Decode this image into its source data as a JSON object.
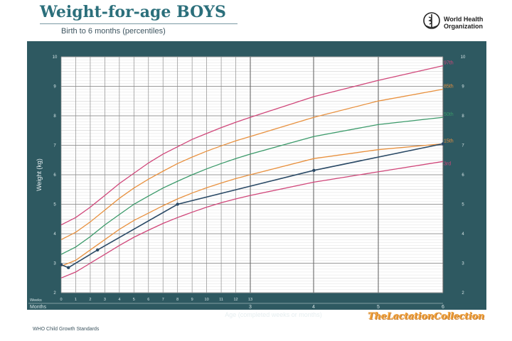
{
  "header": {
    "title": "Weight-for-age BOYS",
    "subtitle": "Birth to 6 months (percentiles)",
    "org_line1": "World Health",
    "org_line2": "Organization"
  },
  "footer": {
    "source": "WHO Child Growth Standards",
    "brand": "TheLactationCollection"
  },
  "colors": {
    "panel": "#2e5961",
    "p97": "#d0477a",
    "p85": "#e8913f",
    "p50": "#3b9a6a",
    "p15": "#e8913f",
    "p3": "#d0477a",
    "child": "#2b4a66"
  },
  "chart_data": {
    "type": "line",
    "xlabel": "Age (completed weeks or months)",
    "ylabel": "Weight (kg)",
    "y_range": [
      2,
      10
    ],
    "y_ticks": [
      2,
      3,
      4,
      5,
      6,
      7,
      8,
      9,
      10
    ],
    "week_axis_label": "Weeks",
    "month_axis_label": "Months",
    "week_ticks": [
      "0",
      "1",
      "2",
      "3",
      "4",
      "5",
      "6",
      "7",
      "8",
      "9",
      "10",
      "11",
      "12",
      "13"
    ],
    "month_ticks": [
      "3",
      "4",
      "5",
      "6"
    ],
    "x_unit": "weeks",
    "x_range": [
      0,
      26
    ],
    "grid": true,
    "percentile_series": [
      {
        "name": "97th",
        "x": [
          0,
          1,
          2,
          3,
          4,
          5,
          6,
          7,
          8,
          9,
          10,
          11,
          12,
          13,
          17.4,
          21.7,
          26.1
        ],
        "values": [
          4.3,
          4.55,
          4.9,
          5.3,
          5.7,
          6.05,
          6.4,
          6.7,
          6.95,
          7.2,
          7.4,
          7.6,
          7.78,
          7.95,
          8.65,
          9.2,
          9.7
        ]
      },
      {
        "name": "85th",
        "x": [
          0,
          1,
          2,
          3,
          4,
          5,
          6,
          7,
          8,
          9,
          10,
          11,
          12,
          13,
          17.4,
          21.7,
          26.1
        ],
        "values": [
          3.8,
          4.05,
          4.4,
          4.8,
          5.2,
          5.55,
          5.85,
          6.12,
          6.38,
          6.6,
          6.8,
          6.98,
          7.15,
          7.3,
          7.95,
          8.5,
          8.9
        ]
      },
      {
        "name": "50th",
        "x": [
          0,
          1,
          2,
          3,
          4,
          5,
          6,
          7,
          8,
          9,
          10,
          11,
          12,
          13,
          17.4,
          21.7,
          26.1
        ],
        "values": [
          3.3,
          3.55,
          3.9,
          4.3,
          4.65,
          5.0,
          5.28,
          5.55,
          5.78,
          6.0,
          6.2,
          6.38,
          6.55,
          6.7,
          7.3,
          7.7,
          7.95
        ]
      },
      {
        "name": "15th",
        "x": [
          0,
          1,
          2,
          3,
          4,
          5,
          6,
          7,
          8,
          9,
          10,
          11,
          12,
          13,
          17.4,
          21.7,
          26.1
        ],
        "values": [
          2.9,
          3.1,
          3.45,
          3.8,
          4.15,
          4.45,
          4.7,
          4.95,
          5.18,
          5.38,
          5.56,
          5.72,
          5.87,
          6.0,
          6.55,
          6.85,
          7.05
        ]
      },
      {
        "name": "3rd",
        "x": [
          0,
          1,
          2,
          3,
          4,
          5,
          6,
          7,
          8,
          9,
          10,
          11,
          12,
          13,
          17.4,
          21.7,
          26.1
        ],
        "values": [
          2.5,
          2.7,
          3.0,
          3.3,
          3.6,
          3.88,
          4.12,
          4.35,
          4.55,
          4.73,
          4.9,
          5.05,
          5.18,
          5.3,
          5.75,
          6.1,
          6.45
        ]
      }
    ],
    "child_series": {
      "x": [
        0,
        0.5,
        2.5,
        8,
        17.4,
        26.1
      ],
      "values": [
        2.95,
        2.85,
        3.45,
        5.0,
        6.15,
        7.05
      ]
    }
  }
}
